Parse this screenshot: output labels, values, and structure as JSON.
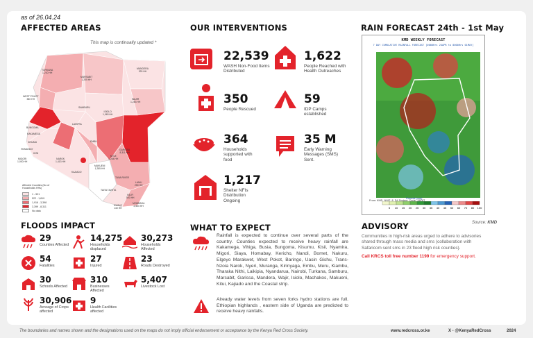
{
  "date": "as of 26.04.24",
  "affected": {
    "title": "AFFECTED AREAS",
    "map_note": "This map is continually updated *",
    "legend_title": "Affected Counties (No of Households HHs)",
    "legend": [
      {
        "label": "1 - 521",
        "color": "#fbe3e4"
      },
      {
        "label": "522 - 1,819",
        "color": "#f4aeb1"
      },
      {
        "label": "1,916 - 3,398",
        "color": "#ec6e74"
      },
      {
        "label": "3,399 - 8,311",
        "color": "#e3232b"
      },
      {
        "label": "No data",
        "color": "#ffffff"
      }
    ],
    "counties": [
      {
        "name": "TURKANA",
        "value": "1,210 HH"
      },
      {
        "name": "MARSABIT",
        "value": "1,205 HH"
      },
      {
        "name": "MANDERA",
        "value": "320 HH"
      },
      {
        "name": "WAJIR",
        "value": "1,283 HH"
      },
      {
        "name": "WEST POKOT",
        "value": "380 HH"
      },
      {
        "name": "SAMBURU",
        "value": ""
      },
      {
        "name": "ISIOLO",
        "value": "1,063 HH"
      },
      {
        "name": "LAIKIPIA",
        "value": ""
      },
      {
        "name": "GARISSA",
        "value": "8,311 HH"
      },
      {
        "name": "BUNGOMA",
        "value": ""
      },
      {
        "name": "KAKAMEGA",
        "value": ""
      },
      {
        "name": "KISUMU",
        "value": ""
      },
      {
        "name": "HOMA BAY",
        "value": ""
      },
      {
        "name": "KISII",
        "value": ""
      },
      {
        "name": "NAROK",
        "value": "1,413 HH"
      },
      {
        "name": "KAJIADO",
        "value": ""
      },
      {
        "name": "MAKUENI",
        "value": "1,285 HH"
      },
      {
        "name": "KITUI",
        "value": "1,204 HH"
      },
      {
        "name": "TANA RIVER",
        "value": ""
      },
      {
        "name": "TAITA TAVETA",
        "value": ""
      },
      {
        "name": "LAMU",
        "value": "250 HH"
      },
      {
        "name": "KILIFI",
        "value": "500 HH"
      },
      {
        "name": "MOMBASA",
        "value": "2,500 HH"
      },
      {
        "name": "KWALE",
        "value": "140 HH"
      },
      {
        "name": "MIGORI",
        "value": "1,000 HH"
      },
      {
        "name": "EMBU",
        "value": ""
      }
    ]
  },
  "interventions": {
    "title": "OUR INTERVENTIONS",
    "items": [
      {
        "num": "22,539",
        "label": "WASH Non-Food Items Distributed",
        "icon": "wash-kit-icon"
      },
      {
        "num": "1,622",
        "label": "People Reached with Health Outreaches",
        "icon": "medical-kit-icon"
      },
      {
        "num": "350",
        "label": "People Rescued",
        "icon": "rescuer-icon"
      },
      {
        "num": "59",
        "label": "IDP Camps established",
        "icon": "camp-tent-icon"
      },
      {
        "num": "364",
        "label": "Households supported with food",
        "icon": "food-bowl-icon"
      },
      {
        "num": "35 M",
        "label": "Early Warning Messages (SMS) Sent.",
        "icon": "message-icon"
      },
      {
        "num": "1,217",
        "label": "Shelter NFIs Distribution Ongoing",
        "icon": "shelter-icon"
      }
    ]
  },
  "forecast": {
    "title": "RAIN FORECAST 24th - 1st May",
    "map_title": "KMD WEEKLY FORECAST",
    "map_subtitle": "7 DAY CUMULATIVE RAINFALL FORECAST [0000Hrs 24APR to 0000Hrs 01MAY]",
    "footer": "From: KMD_NWP_8_D4 System: Cycle: 15EAT",
    "colorbar_label": "Rainfall [mm]",
    "colorbar_ticks": [
      "5",
      "10",
      "15",
      "20",
      "25",
      "30",
      "35",
      "40",
      "45",
      "50",
      "60",
      "70",
      "80",
      "100"
    ],
    "colorbar_colors": [
      "#f1f6cc",
      "#e0f0b0",
      "#bfe28e",
      "#8fcf6a",
      "#5fb64b",
      "#2e9a36",
      "#1f7d2b",
      "#7ec4e8",
      "#4e99d2",
      "#2462b6",
      "#f4c8c8",
      "#ec8a8a",
      "#e04444",
      "#a60f0f"
    ],
    "source_label": "Source:",
    "source": "KMD"
  },
  "floods": {
    "title": "FLOODS IMPACT",
    "items": [
      {
        "num": "29",
        "label": "Counties Affected",
        "icon": "rain-cloud-icon"
      },
      {
        "num": "14,275",
        "label": "Households displaced",
        "icon": "displaced-person-icon"
      },
      {
        "num": "30,273",
        "label": "Households Affected",
        "icon": "flooded-house-icon"
      },
      {
        "num": "54",
        "label": "Fatalities",
        "icon": "fatality-icon"
      },
      {
        "num": "27",
        "label": "Injured",
        "icon": "injured-icon"
      },
      {
        "num": "23",
        "label": "Roads Destroyed",
        "icon": "road-icon"
      },
      {
        "num": "30",
        "label": "Schools Affected",
        "icon": "school-icon"
      },
      {
        "num": "310",
        "label": "Businesses Affected",
        "icon": "business-icon"
      },
      {
        "num": "5,407",
        "label": "Livestock Lost",
        "icon": "livestock-icon"
      },
      {
        "num": "30,906",
        "label": "Acreage of Crops affected",
        "icon": "crops-icon"
      },
      {
        "num": "9",
        "label": "Health Facilities affected",
        "icon": "health-facility-icon"
      }
    ]
  },
  "expect": {
    "title": "WHAT TO EXPECT",
    "paragraph1": "Rainfall is expected to continue over several parts of the country. Counties expected to receive heavy rainfall are Kakamega, Vihiga, Busia, Bungoma, Kisumu, Kisii, Nyamira, Migori, Siaya, Homabay, Kericho, Nandi, Bomet, Nakuru, Elgeyo Marakwet, West Pokot, Baringo, Uasin Gishu, Trans-Nzoia Narok, Nyeri, Muranga, Kirinyaga, Embu, Meru, Kiambu, Tharaka Nithi, Laikipia, Nyandarua, Nairobi, Turkana, Samburu, Marsabit, Garissa, Mandera, Wajir, Isiolo, Machakos, Makueni, Kitui, Kajiado and the Coastal strip.",
    "paragraph2": "Already water levels from seven forks hydro stations are full. Ethiopian highlands , eastern side of Uganda are predicted to receive heavy rainfalls."
  },
  "advisory": {
    "title": "ADVISORY",
    "text": "Communities in high-risk areas urged to adhere to advisories shared through mass media and sms (collaboration with Safaricom sent sms in 23 flood high risk counties).",
    "call_bold": "Call KRCS toll free number 1199",
    "call_rest": " for emergency support."
  },
  "footer": {
    "disclaimer": "The boundaries and names shown and the designations used on the maps do not imply official endorsement or acceptance by the Kenya Red Cross Society.",
    "website": "www.redcross.or.ke",
    "social": "X - @KenyaRedCross",
    "year": "2024"
  },
  "colors": {
    "accent": "#e3232b"
  }
}
